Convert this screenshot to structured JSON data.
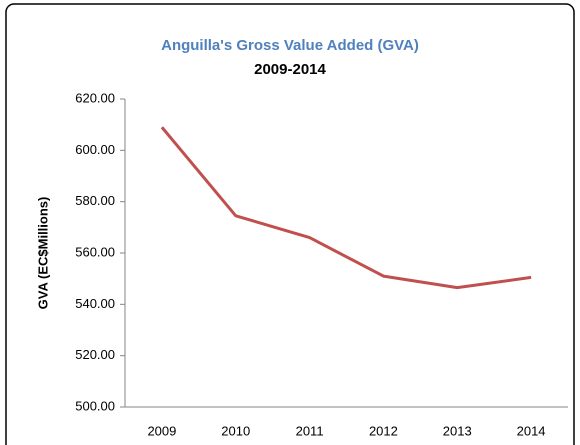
{
  "chart_data": {
    "type": "line",
    "title": "Anguilla's Gross Value Added (GVA)",
    "subtitle": "2009-2014",
    "y_label": "GVA (EC$Millions)",
    "categories": [
      "2009",
      "2010",
      "2011",
      "2012",
      "2013",
      "2014"
    ],
    "series": [
      {
        "name": "GVA",
        "color": "#c0504d",
        "values": [
          609,
          574.5,
          566,
          551,
          546.5,
          550.5
        ]
      }
    ],
    "ylim": [
      500,
      620
    ],
    "yticks": [
      {
        "value": 500,
        "label": "500.00"
      },
      {
        "value": 520,
        "label": "520.00"
      },
      {
        "value": 540,
        "label": "540.00"
      },
      {
        "value": 560,
        "label": "560.00"
      },
      {
        "value": 580,
        "label": "580.00"
      },
      {
        "value": 600,
        "label": "600.00"
      },
      {
        "value": 620,
        "label": "620.00"
      }
    ],
    "grid": false
  }
}
